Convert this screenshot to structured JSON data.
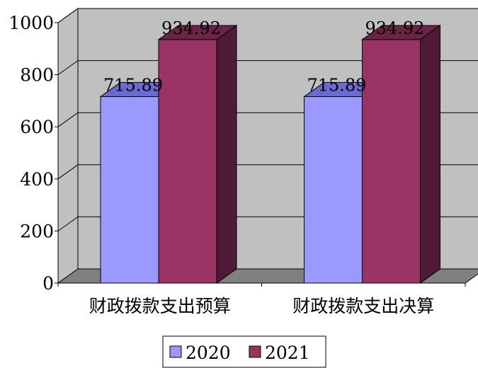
{
  "chart_data": {
    "type": "bar",
    "style": "3d-clustered-column",
    "categories": [
      "财政拨款支出预算",
      "财政拨款支出决算"
    ],
    "series": [
      {
        "name": "2020",
        "values": [
          715.89,
          715.89
        ],
        "labels": [
          "715.89",
          "715.89"
        ],
        "color": "#9999FF",
        "top_color": "#6A6AD0",
        "side_color": "#5C5CB0"
      },
      {
        "name": "2021",
        "values": [
          934.92,
          934.92
        ],
        "labels": [
          "934.92",
          "934.92"
        ],
        "color": "#993366",
        "top_color": "#6E2245",
        "side_color": "#4F1A35"
      }
    ],
    "yticks": [
      "0",
      "200",
      "400",
      "600",
      "800",
      "1000"
    ],
    "ylim": [
      0,
      1000
    ],
    "grid": true,
    "legend_position": "bottom",
    "wall_color": "#C0C0C0",
    "floor_color": "#808080"
  }
}
